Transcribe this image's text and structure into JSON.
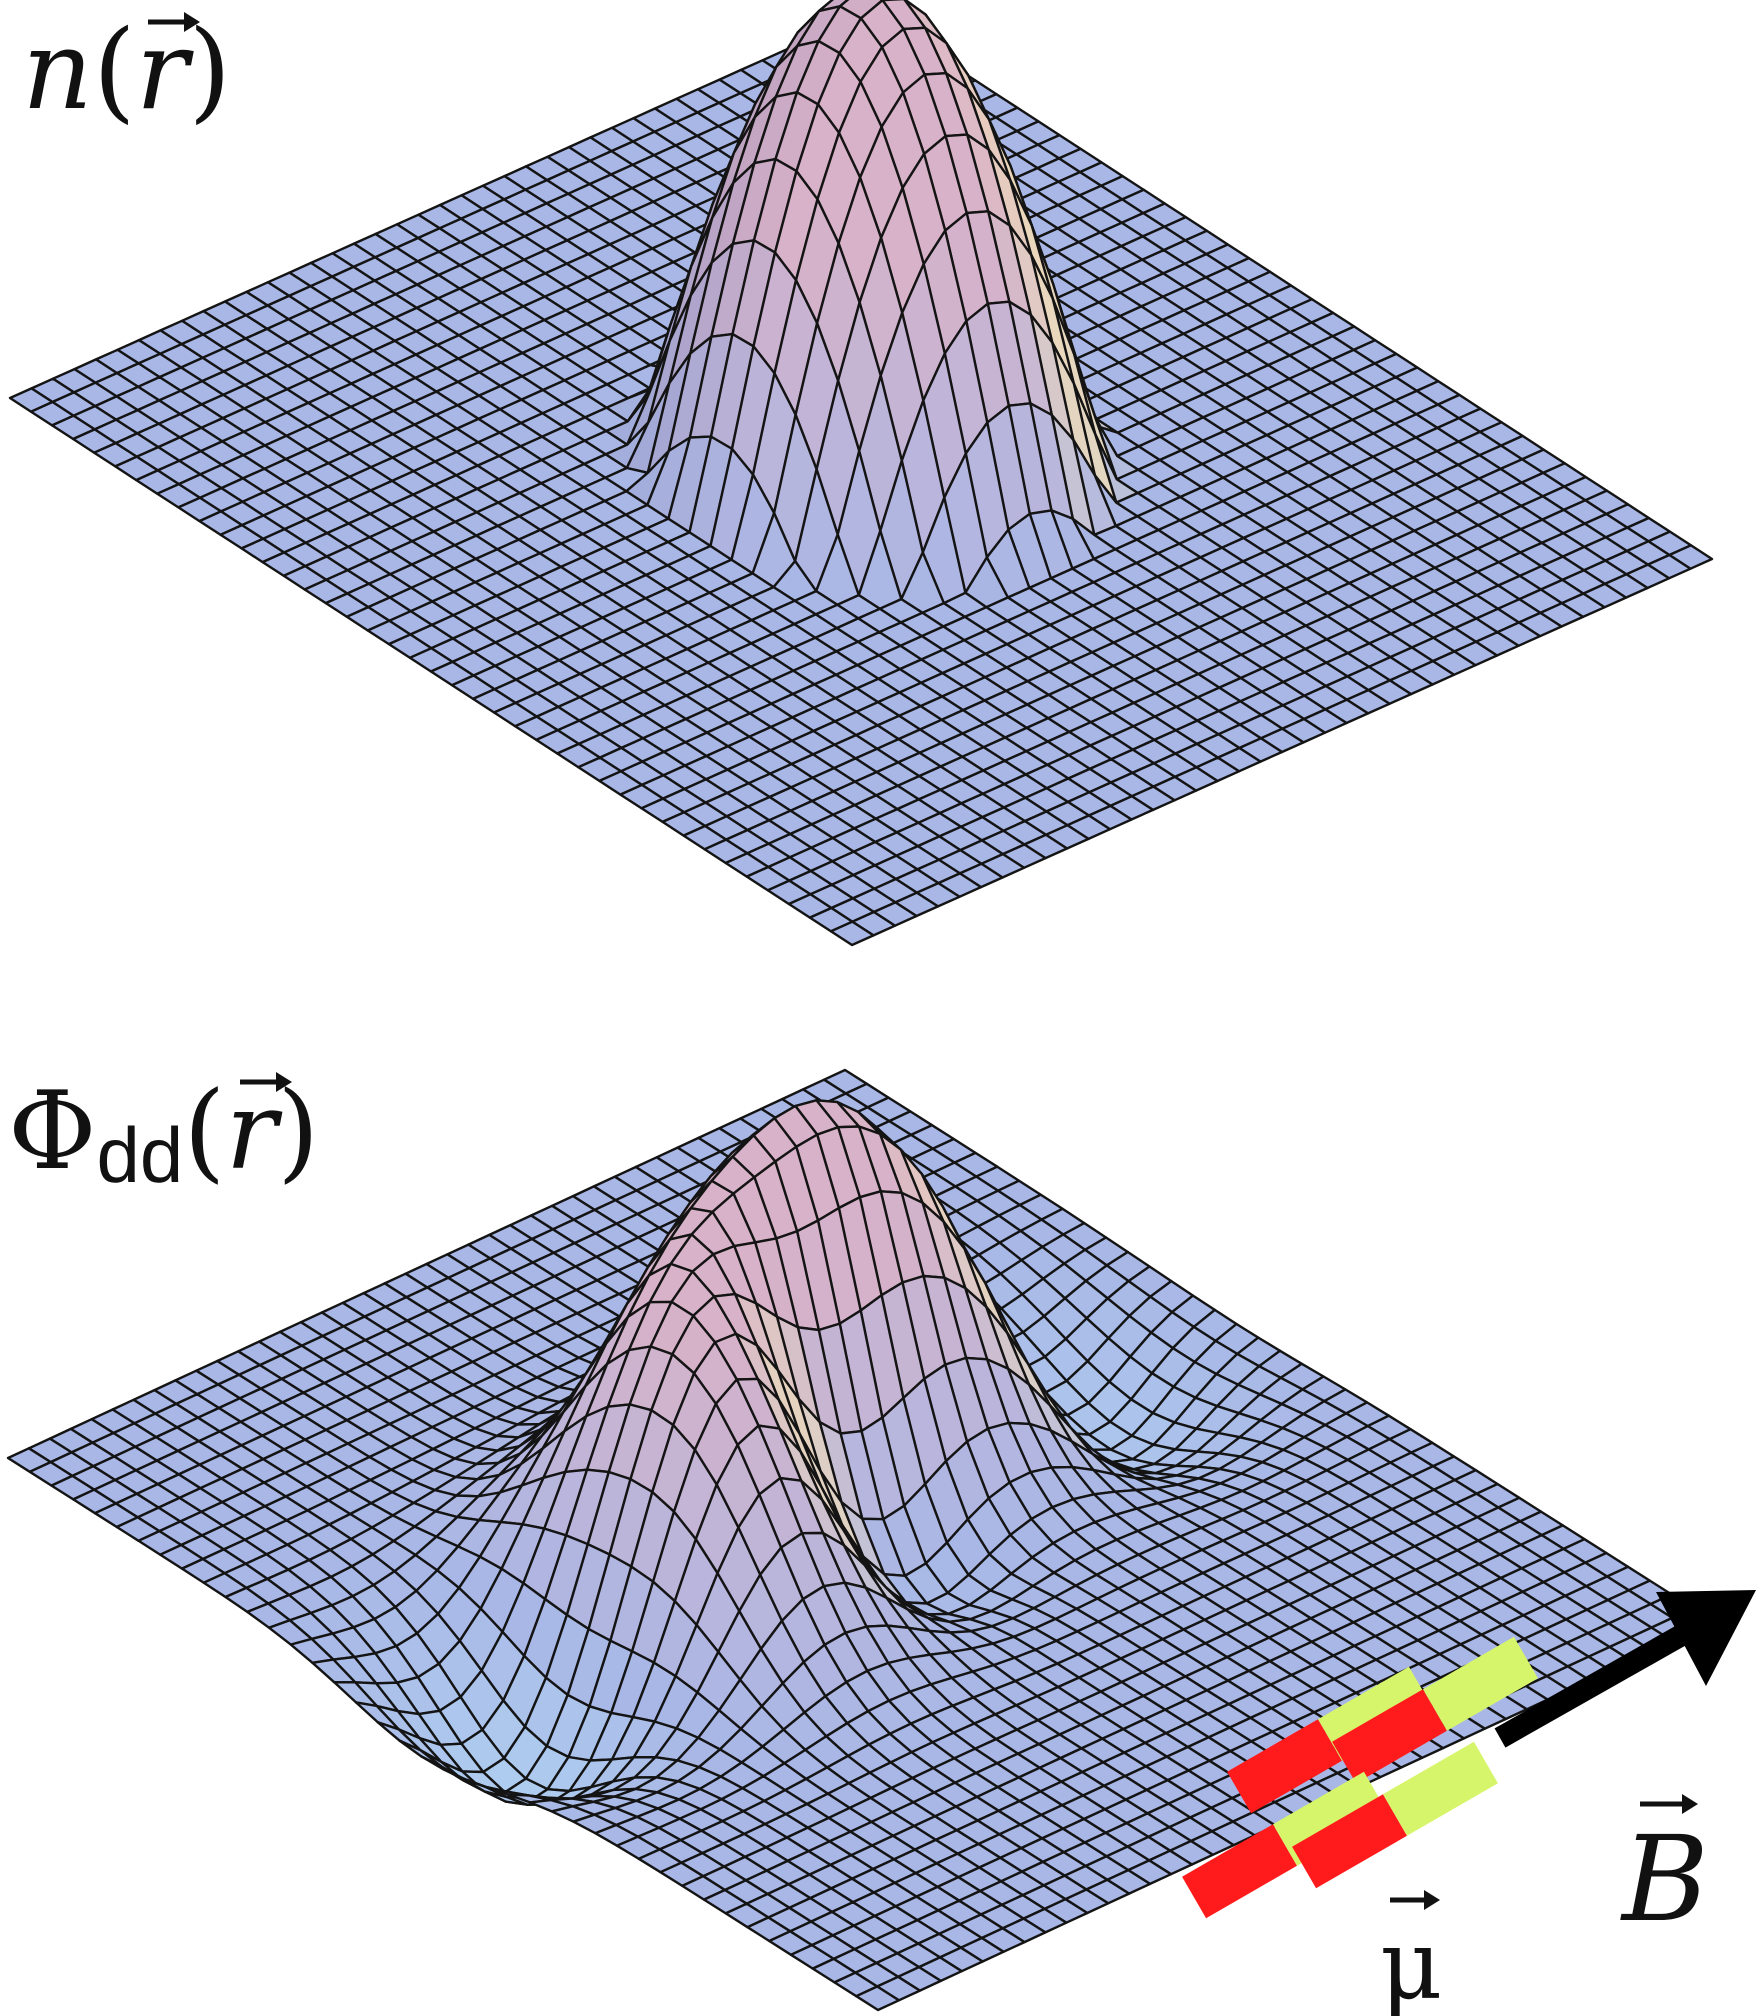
{
  "labels": {
    "top_surface": {
      "name": "n",
      "arg": "r"
    },
    "bottom_surface": {
      "symbol": "Φ",
      "subscript": "dd",
      "arg": "r"
    },
    "field": "B",
    "moment": "μ"
  },
  "surfaces": {
    "top": {
      "function": "density",
      "shape": "single-peak",
      "grid_lines": 41
    },
    "bottom": {
      "function": "dipolar-potential",
      "shape": "saddle",
      "grid_lines": 41
    }
  },
  "colors": {
    "mesh_flat": "#a9b7e6",
    "mesh_peak": "#d8b2c8",
    "mesh_warm": "#f2e0b8",
    "grid_line": "#141414",
    "dipole_north": "#ff1b1b",
    "dipole_south": "#d6f56a",
    "arrow": "#000000"
  }
}
